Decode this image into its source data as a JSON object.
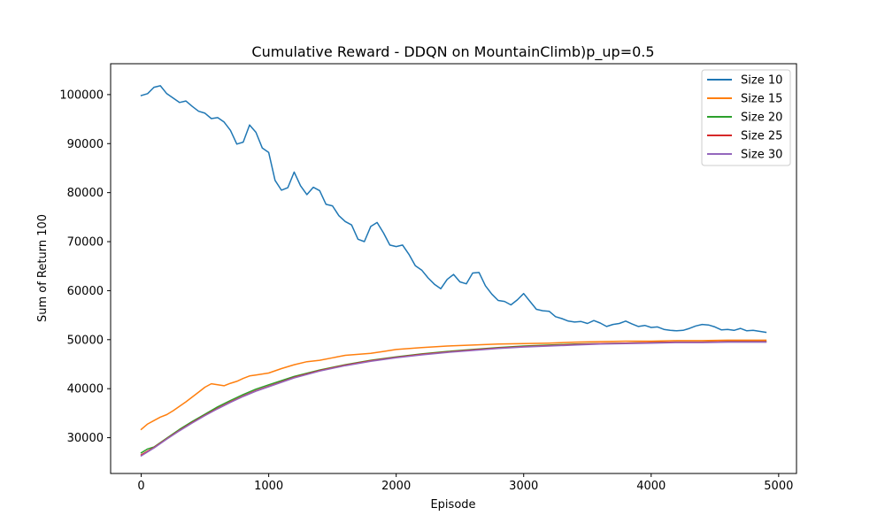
{
  "chart_data": {
    "type": "line",
    "title": "Cumulative Reward - DDQN on MountainClimb)p_up=0.5",
    "xlabel": "Episode",
    "ylabel": "Sum of Return 100",
    "xlim": [
      -240,
      5140
    ],
    "ylim": [
      22700,
      106300
    ],
    "xticks": [
      0,
      1000,
      2000,
      3000,
      4000,
      5000
    ],
    "yticks": [
      30000,
      40000,
      50000,
      60000,
      70000,
      80000,
      90000,
      100000
    ],
    "grid": false,
    "legend_position": "top-right",
    "series": [
      {
        "name": "Size 10",
        "color": "#1f77b4",
        "x": [
          0,
          50,
          100,
          150,
          200,
          250,
          300,
          350,
          400,
          450,
          500,
          550,
          600,
          650,
          700,
          750,
          800,
          850,
          900,
          950,
          1000,
          1050,
          1100,
          1150,
          1200,
          1250,
          1300,
          1350,
          1400,
          1450,
          1500,
          1550,
          1600,
          1650,
          1700,
          1750,
          1800,
          1850,
          1900,
          1950,
          2000,
          2050,
          2100,
          2150,
          2200,
          2250,
          2300,
          2350,
          2400,
          2450,
          2500,
          2550,
          2600,
          2650,
          2700,
          2750,
          2800,
          2850,
          2900,
          2950,
          3000,
          3050,
          3100,
          3150,
          3200,
          3250,
          3300,
          3350,
          3400,
          3450,
          3500,
          3550,
          3600,
          3650,
          3700,
          3750,
          3800,
          3850,
          3900,
          3950,
          4000,
          4050,
          4100,
          4150,
          4200,
          4250,
          4300,
          4350,
          4400,
          4450,
          4500,
          4550,
          4600,
          4650,
          4700,
          4750,
          4800,
          4850,
          4900
        ],
        "values": [
          99800,
          100200,
          101500,
          101800,
          100200,
          99300,
          98400,
          98700,
          97600,
          96600,
          96200,
          95100,
          95300,
          94400,
          92700,
          89900,
          90300,
          93800,
          92300,
          89100,
          88200,
          82500,
          80500,
          81000,
          84200,
          81400,
          79600,
          81100,
          80400,
          77600,
          77300,
          75300,
          74100,
          73400,
          70500,
          70000,
          73100,
          73900,
          71800,
          69300,
          69000,
          69300,
          67400,
          65100,
          64200,
          62600,
          61300,
          60400,
          62300,
          63300,
          61800,
          61400,
          63600,
          63700,
          61000,
          59300,
          58000,
          57800,
          57100,
          58100,
          59400,
          57800,
          56200,
          55900,
          55800,
          54700,
          54300,
          53800,
          53600,
          53700,
          53300,
          53900,
          53400,
          52700,
          53100,
          53300,
          53800,
          53200,
          52700,
          52900,
          52500,
          52600,
          52100,
          51900,
          51800,
          51900,
          52300,
          52800,
          53100,
          53000,
          52600,
          52000,
          52100,
          51900,
          52300,
          51800,
          51900,
          51700,
          51500
        ]
      },
      {
        "name": "Size 15",
        "color": "#ff7f0e",
        "x": [
          0,
          50,
          100,
          150,
          200,
          250,
          300,
          350,
          400,
          450,
          500,
          550,
          600,
          650,
          700,
          750,
          800,
          850,
          900,
          950,
          1000,
          1100,
          1200,
          1300,
          1400,
          1500,
          1600,
          1700,
          1800,
          1900,
          2000,
          2200,
          2400,
          2600,
          2800,
          3000,
          3200,
          3400,
          3600,
          3800,
          4000,
          4200,
          4400,
          4600,
          4800,
          4900
        ],
        "values": [
          31700,
          32800,
          33500,
          34200,
          34700,
          35500,
          36400,
          37300,
          38300,
          39300,
          40300,
          41000,
          40800,
          40600,
          41100,
          41500,
          42100,
          42600,
          42800,
          43000,
          43200,
          44100,
          44900,
          45500,
          45800,
          46300,
          46800,
          47000,
          47200,
          47600,
          48000,
          48400,
          48700,
          48900,
          49100,
          49200,
          49300,
          49500,
          49600,
          49700,
          49700,
          49800,
          49800,
          49900,
          49900,
          49900
        ]
      },
      {
        "name": "Size 20",
        "color": "#2ca02c",
        "x": [
          0,
          50,
          100,
          200,
          300,
          400,
          500,
          600,
          700,
          800,
          900,
          1000,
          1200,
          1400,
          1600,
          1800,
          2000,
          2200,
          2400,
          2600,
          2800,
          3000,
          3200,
          3400,
          3600,
          3800,
          4000,
          4200,
          4400,
          4600,
          4800,
          4900
        ],
        "values": [
          26900,
          27700,
          28100,
          29900,
          31700,
          33300,
          34800,
          36300,
          37600,
          38800,
          39900,
          40800,
          42500,
          43800,
          44900,
          45800,
          46500,
          47100,
          47600,
          48000,
          48400,
          48700,
          48900,
          49100,
          49200,
          49300,
          49400,
          49500,
          49500,
          49600,
          49600,
          49600
        ]
      },
      {
        "name": "Size 25",
        "color": "#d62728",
        "x": [
          0,
          100,
          200,
          300,
          400,
          500,
          600,
          700,
          800,
          900,
          1000,
          1200,
          1400,
          1600,
          1800,
          2000,
          2200,
          2400,
          2600,
          2800,
          3000,
          3200,
          3400,
          3600,
          3800,
          4000,
          4200,
          4400,
          4600,
          4800,
          4900
        ],
        "values": [
          26500,
          28000,
          29800,
          31500,
          33100,
          34600,
          36000,
          37300,
          38500,
          39600,
          40500,
          42300,
          43700,
          44800,
          45700,
          46400,
          47000,
          47500,
          47900,
          48300,
          48600,
          48800,
          49000,
          49200,
          49300,
          49400,
          49500,
          49500,
          49600,
          49600,
          49600
        ]
      },
      {
        "name": "Size 30",
        "color": "#9467bd",
        "x": [
          0,
          100,
          200,
          300,
          400,
          500,
          600,
          700,
          800,
          900,
          1000,
          1200,
          1400,
          1600,
          1800,
          2000,
          2200,
          2400,
          2600,
          2800,
          3000,
          3200,
          3400,
          3600,
          3800,
          4000,
          4200,
          4400,
          4600,
          4800,
          4900
        ],
        "values": [
          26300,
          27900,
          29700,
          31400,
          33000,
          34500,
          35900,
          37200,
          38400,
          39500,
          40400,
          42200,
          43600,
          44700,
          45600,
          46300,
          46900,
          47400,
          47800,
          48200,
          48500,
          48700,
          48900,
          49100,
          49200,
          49300,
          49400,
          49400,
          49500,
          49500,
          49500
        ]
      }
    ]
  }
}
